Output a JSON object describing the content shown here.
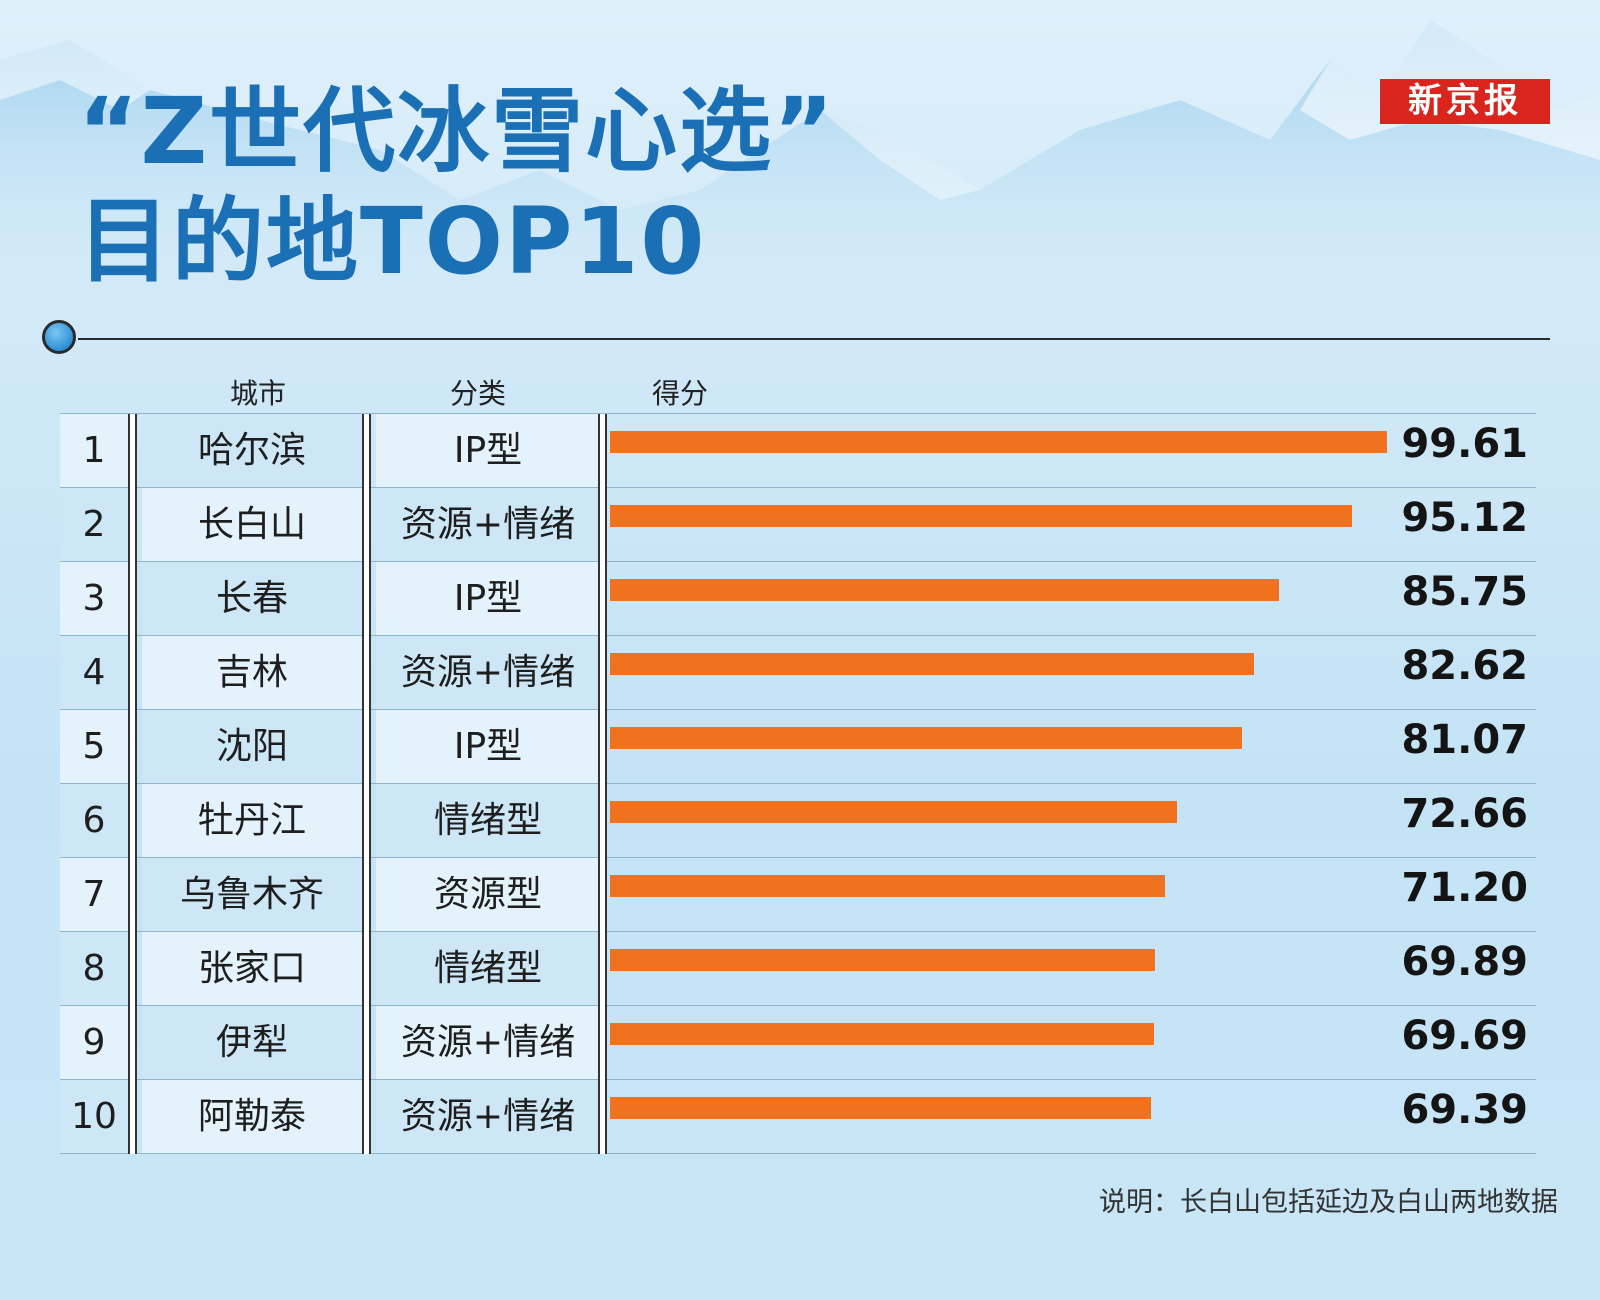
{
  "title_line1": "“Z世代冰雪心选”",
  "title_line2": "目的地TOP10",
  "brand": "新京报",
  "headers": {
    "city": "城市",
    "type": "分类",
    "score": "得分"
  },
  "colors": {
    "bar": "#f0711e",
    "title": "#1a6fb5",
    "brand_bg": "#d9251d"
  },
  "chart_data": {
    "type": "bar",
    "orientation": "horizontal",
    "title": "“Z世代冰雪心选”目的地TOP10",
    "categories": [
      "哈尔滨",
      "长白山",
      "长春",
      "吉林",
      "沈阳",
      "牡丹江",
      "乌鲁木齐",
      "张家口",
      "伊犁",
      "阿勒泰"
    ],
    "ranks": [
      "1",
      "2",
      "3",
      "4",
      "5",
      "6",
      "7",
      "8",
      "9",
      "10"
    ],
    "types": [
      "IP型",
      "资源+情绪",
      "IP型",
      "资源+情绪",
      "IP型",
      "情绪型",
      "资源型",
      "情绪型",
      "资源+情绪",
      "资源+情绪"
    ],
    "values": [
      99.61,
      95.12,
      85.75,
      82.62,
      81.07,
      72.66,
      71.2,
      69.89,
      69.69,
      69.39
    ],
    "value_labels": [
      "99.61",
      "95.12",
      "85.75",
      "82.62",
      "81.07",
      "72.66",
      "71.20",
      "69.89",
      "69.69",
      "69.39"
    ],
    "xlim": [
      0,
      100
    ]
  },
  "note": "说明：长白山包括延边及白山两地数据"
}
